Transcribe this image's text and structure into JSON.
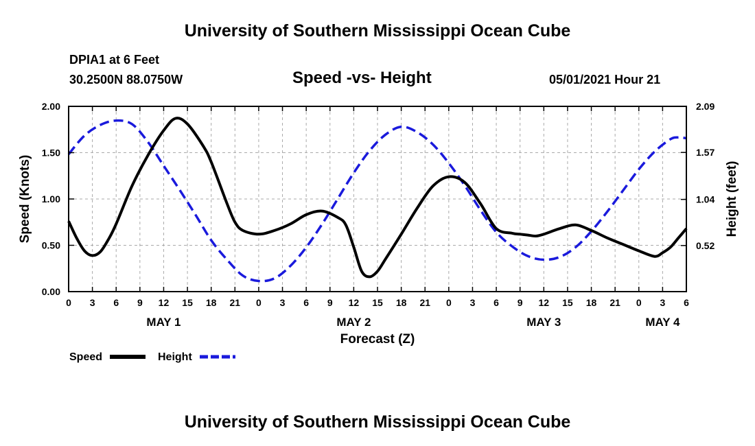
{
  "page": {
    "title_top": "University of Southern Mississippi Ocean Cube",
    "title_bottom": "University of Southern Mississippi Ocean Cube",
    "station": "DPIA1 at 6 Feet",
    "coords": "30.2500N  88.0750W",
    "subtitle": "Speed -vs- Height",
    "datetime": "05/01/2021 Hour 21"
  },
  "chart_data": {
    "type": "line",
    "title": "Speed -vs- Height",
    "xlabel": "Forecast (Z)",
    "ylabel": "Speed (Knots)",
    "ylabel_right": "Height (feet)",
    "x_hours_range": [
      0,
      78
    ],
    "x_ticks": [
      "0",
      "3",
      "6",
      "9",
      "12",
      "15",
      "18",
      "21",
      "0",
      "3",
      "6",
      "9",
      "12",
      "15",
      "18",
      "21",
      "0",
      "3",
      "6",
      "9",
      "12",
      "15",
      "18",
      "21",
      "0",
      "3",
      "6"
    ],
    "day_labels": [
      {
        "label": "MAY 1",
        "hour": 12
      },
      {
        "label": "MAY 2",
        "hour": 36
      },
      {
        "label": "MAY 3",
        "hour": 60
      },
      {
        "label": "MAY 4",
        "hour": 75
      }
    ],
    "ylim": [
      0,
      2.0
    ],
    "yticks": [
      "0.00",
      "0.50",
      "1.00",
      "1.50",
      "2.00"
    ],
    "ylim_right": [
      0,
      2.09
    ],
    "yticks_right": [
      {
        "label": "0.52",
        "value": 0.52
      },
      {
        "label": "1.04",
        "value": 1.04
      },
      {
        "label": "1.57",
        "value": 1.57
      },
      {
        "label": "2.09",
        "value": 2.09
      }
    ],
    "grid": true,
    "series": [
      {
        "name": "Speed",
        "color": "#000000",
        "style": "solid",
        "axis": "left",
        "x": [
          0,
          1,
          2,
          3,
          4,
          5,
          6,
          8,
          10,
          12,
          13.5,
          15,
          17,
          18,
          20,
          21,
          22,
          24,
          26,
          28,
          30,
          32,
          34,
          35,
          36,
          37,
          38,
          39,
          40,
          42,
          44,
          46,
          48,
          50,
          52,
          54,
          56,
          57,
          58,
          59,
          60,
          62,
          64,
          66,
          68,
          70,
          72,
          74,
          75,
          76,
          77,
          78
        ],
        "values": [
          0.76,
          0.58,
          0.44,
          0.39,
          0.43,
          0.56,
          0.73,
          1.14,
          1.47,
          1.74,
          1.87,
          1.81,
          1.57,
          1.4,
          0.95,
          0.75,
          0.66,
          0.62,
          0.66,
          0.73,
          0.83,
          0.87,
          0.8,
          0.72,
          0.48,
          0.22,
          0.16,
          0.22,
          0.35,
          0.62,
          0.9,
          1.14,
          1.24,
          1.18,
          0.95,
          0.68,
          0.63,
          0.62,
          0.61,
          0.6,
          0.62,
          0.68,
          0.72,
          0.66,
          0.58,
          0.51,
          0.44,
          0.38,
          0.42,
          0.48,
          0.58,
          0.68
        ]
      },
      {
        "name": "Height",
        "color": "#1a1adc",
        "style": "dashed",
        "axis": "right",
        "x": [
          0,
          2,
          4,
          6,
          8,
          10,
          12,
          14,
          16,
          18,
          20,
          22,
          24,
          26,
          28,
          30,
          32,
          34,
          36,
          38,
          40,
          42,
          44,
          46,
          48,
          50,
          52,
          54,
          56,
          58,
          60,
          62,
          64,
          66,
          68,
          70,
          72,
          74,
          76,
          77,
          78
        ],
        "values": [
          1.55,
          1.76,
          1.88,
          1.93,
          1.89,
          1.69,
          1.42,
          1.15,
          0.87,
          0.58,
          0.36,
          0.18,
          0.12,
          0.15,
          0.29,
          0.5,
          0.76,
          1.05,
          1.34,
          1.59,
          1.77,
          1.86,
          1.8,
          1.66,
          1.45,
          1.2,
          0.92,
          0.67,
          0.51,
          0.4,
          0.36,
          0.39,
          0.5,
          0.68,
          0.9,
          1.14,
          1.38,
          1.58,
          1.72,
          1.74,
          1.73
        ]
      }
    ],
    "legend": [
      {
        "label": "Speed",
        "color": "#000000",
        "style": "solid"
      },
      {
        "label": "Height",
        "color": "#1a1adc",
        "style": "dashed"
      }
    ]
  }
}
